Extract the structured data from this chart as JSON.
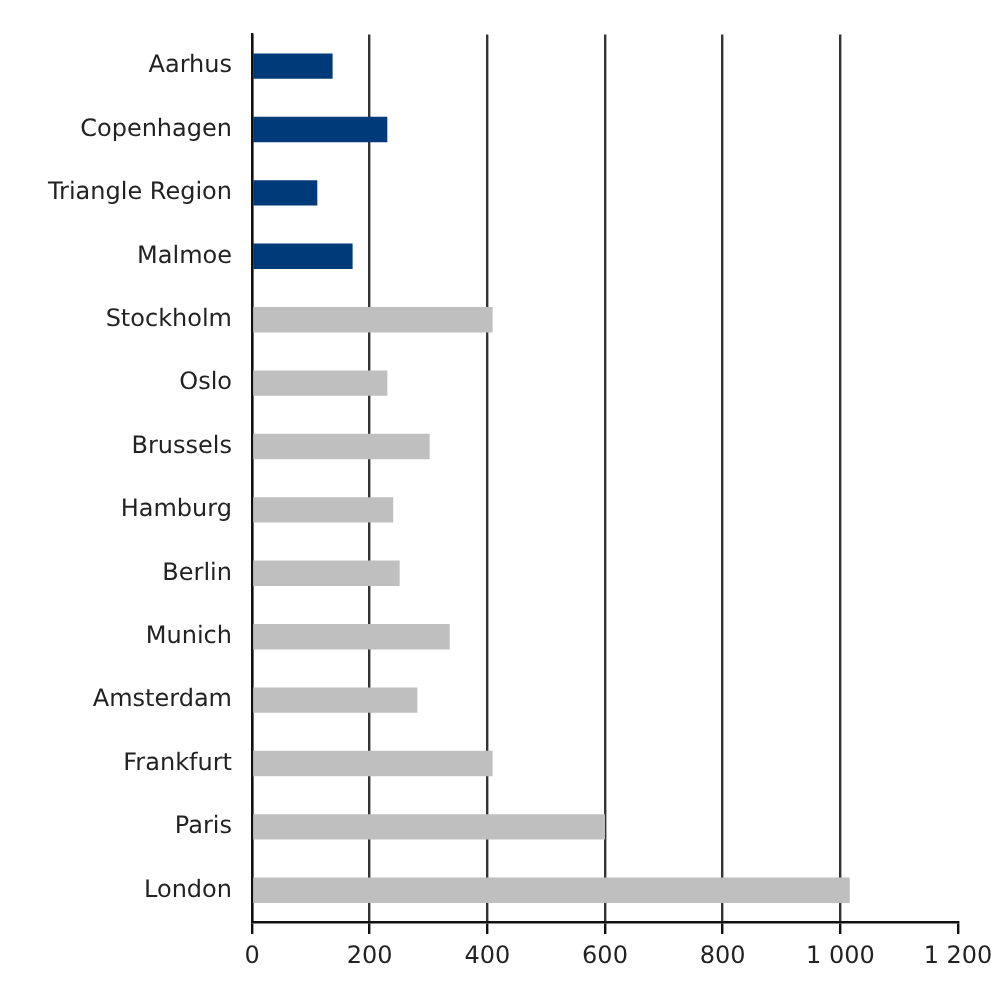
{
  "chart_data": {
    "type": "bar",
    "orientation": "horizontal",
    "categories": [
      "Aarhus",
      "Copenhagen",
      "Triangle Region",
      "Malmoe",
      "Stockholm",
      "Oslo",
      "Brussels",
      "Hamburg",
      "Berlin",
      "Munich",
      "Amsterdam",
      "Frankfurt",
      "Paris",
      "London"
    ],
    "values": [
      137,
      230,
      111,
      171,
      409,
      230,
      302,
      240,
      251,
      336,
      281,
      409,
      600,
      1016
    ],
    "colors": [
      "#003a78",
      "#003a78",
      "#003a78",
      "#003a78",
      "#bfbfbf",
      "#bfbfbf",
      "#bfbfbf",
      "#bfbfbf",
      "#bfbfbf",
      "#bfbfbf",
      "#bfbfbf",
      "#bfbfbf",
      "#bfbfbf",
      "#bfbfbf"
    ],
    "xlim": [
      0,
      1200
    ],
    "xticks": [
      0,
      200,
      400,
      600,
      800,
      {
        "value": 1000,
        "label": "1 000"
      },
      {
        "value": 1200,
        "label": "1 200"
      }
    ],
    "grid": "x"
  }
}
